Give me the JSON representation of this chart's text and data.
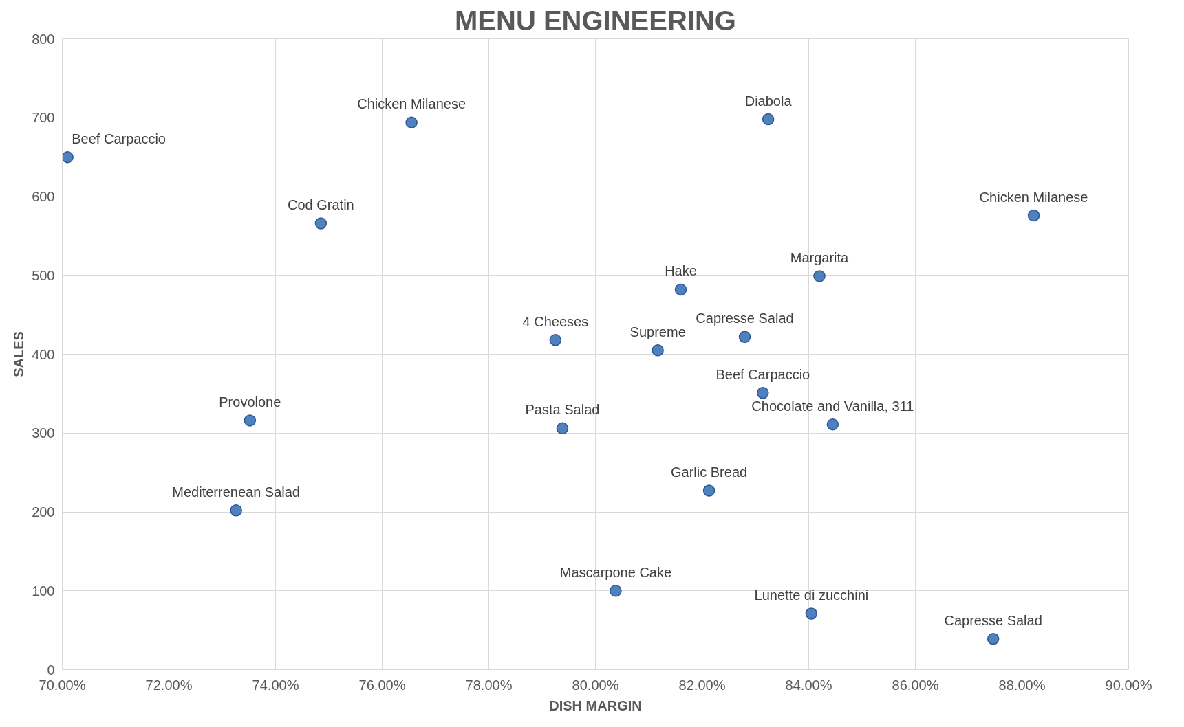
{
  "chart_data": {
    "type": "scatter",
    "title": "MENU ENGINEERING",
    "xlabel": "DISH MARGIN",
    "ylabel": "SALES",
    "x": [
      70.1,
      76.55,
      74.85,
      83.24,
      88.22,
      84.2,
      81.6,
      79.25,
      81.17,
      82.8,
      83.14,
      84.45,
      73.52,
      79.38,
      73.26,
      82.13,
      80.38,
      84.05,
      87.46
    ],
    "series": [
      {
        "color": "#4f81bd",
        "values": [
          650,
          694,
          566,
          698,
          576,
          499,
          482,
          418,
          405,
          422,
          351,
          311,
          316,
          306,
          202,
          227,
          100,
          71,
          39
        ]
      }
    ],
    "annotations": [
      {
        "text": "Beef Carpaccio",
        "x": 70.1,
        "y": 650
      },
      {
        "text": "Chicken Milanese",
        "x": 76.55,
        "y": 694
      },
      {
        "text": "Cod Gratin",
        "x": 74.85,
        "y": 566
      },
      {
        "text": "Diabola",
        "x": 83.24,
        "y": 698
      },
      {
        "text": "Chicken Milanese",
        "x": 88.22,
        "y": 576
      },
      {
        "text": "Margarita",
        "x": 84.2,
        "y": 499
      },
      {
        "text": "Hake",
        "x": 81.6,
        "y": 482
      },
      {
        "text": "4 Cheeses",
        "x": 79.25,
        "y": 418
      },
      {
        "text": "Supreme",
        "x": 81.17,
        "y": 405
      },
      {
        "text": "Capresse Salad",
        "x": 82.8,
        "y": 422
      },
      {
        "text": "Beef Carpaccio",
        "x": 83.14,
        "y": 351
      },
      {
        "text": "Chocolate and Vanilla, 311",
        "x": 84.45,
        "y": 311
      },
      {
        "text": "Provolone",
        "x": 73.52,
        "y": 316
      },
      {
        "text": "Pasta Salad",
        "x": 79.38,
        "y": 306
      },
      {
        "text": "Mediterrenean Salad",
        "x": 73.26,
        "y": 202
      },
      {
        "text": "Garlic Bread",
        "x": 82.13,
        "y": 227
      },
      {
        "text": "Mascarpone Cake",
        "x": 80.38,
        "y": 100
      },
      {
        "text": "Lunette di zucchini",
        "x": 84.05,
        "y": 71
      },
      {
        "text": "Capresse Salad",
        "x": 87.46,
        "y": 39
      }
    ],
    "xlim": [
      70,
      90
    ],
    "xticks": [
      {
        "value": 70,
        "label": "70.00%"
      },
      {
        "value": 72,
        "label": "72.00%"
      },
      {
        "value": 74,
        "label": "74.00%"
      },
      {
        "value": 76,
        "label": "76.00%"
      },
      {
        "value": 78,
        "label": "78.00%"
      },
      {
        "value": 80,
        "label": "80.00%"
      },
      {
        "value": 82,
        "label": "82.00%"
      },
      {
        "value": 84,
        "label": "84.00%"
      },
      {
        "value": 86,
        "label": "86.00%"
      },
      {
        "value": 88,
        "label": "88.00%"
      },
      {
        "value": 90,
        "label": "90.00%"
      }
    ],
    "ylim": [
      0,
      800
    ],
    "yticks": [
      0,
      100,
      200,
      300,
      400,
      500,
      600,
      700,
      800
    ],
    "grid": true,
    "marker": "circle"
  }
}
